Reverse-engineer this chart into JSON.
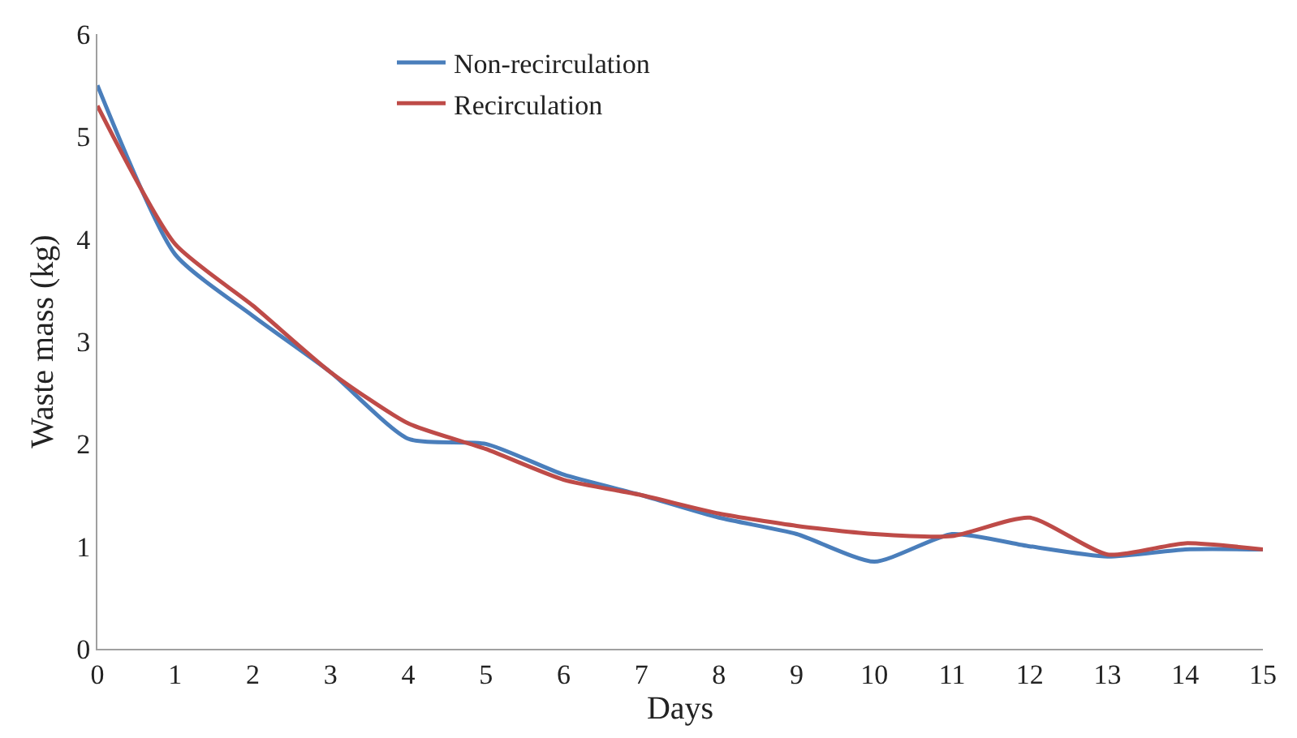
{
  "chart_data": {
    "type": "line",
    "xlabel": "Days",
    "ylabel": "Waste mass (kg)",
    "x": [
      0,
      1,
      2,
      3,
      4,
      5,
      6,
      7,
      8,
      9,
      10,
      11,
      12,
      13,
      14,
      15
    ],
    "series": [
      {
        "name": "Non-recirculation",
        "color": "#4a7ebb",
        "values": [
          5.5,
          3.85,
          3.25,
          2.7,
          2.05,
          2.0,
          1.7,
          1.5,
          1.28,
          1.12,
          0.85,
          1.12,
          1.0,
          0.9,
          0.97,
          0.97
        ]
      },
      {
        "name": "Recirculation",
        "color": "#be4b48",
        "values": [
          5.3,
          3.95,
          3.35,
          2.7,
          2.2,
          1.95,
          1.65,
          1.5,
          1.32,
          1.2,
          1.12,
          1.1,
          1.28,
          0.92,
          1.03,
          0.97
        ]
      }
    ],
    "xlim": [
      0,
      15
    ],
    "xticks": [
      0,
      1,
      2,
      3,
      4,
      5,
      6,
      7,
      8,
      9,
      10,
      11,
      12,
      13,
      14,
      15
    ],
    "ylim": [
      0,
      6
    ],
    "yticks": [
      0,
      1,
      2,
      3,
      4,
      5,
      6
    ],
    "grid": false,
    "legend": "top",
    "marker": "none",
    "line_style": "solid"
  }
}
